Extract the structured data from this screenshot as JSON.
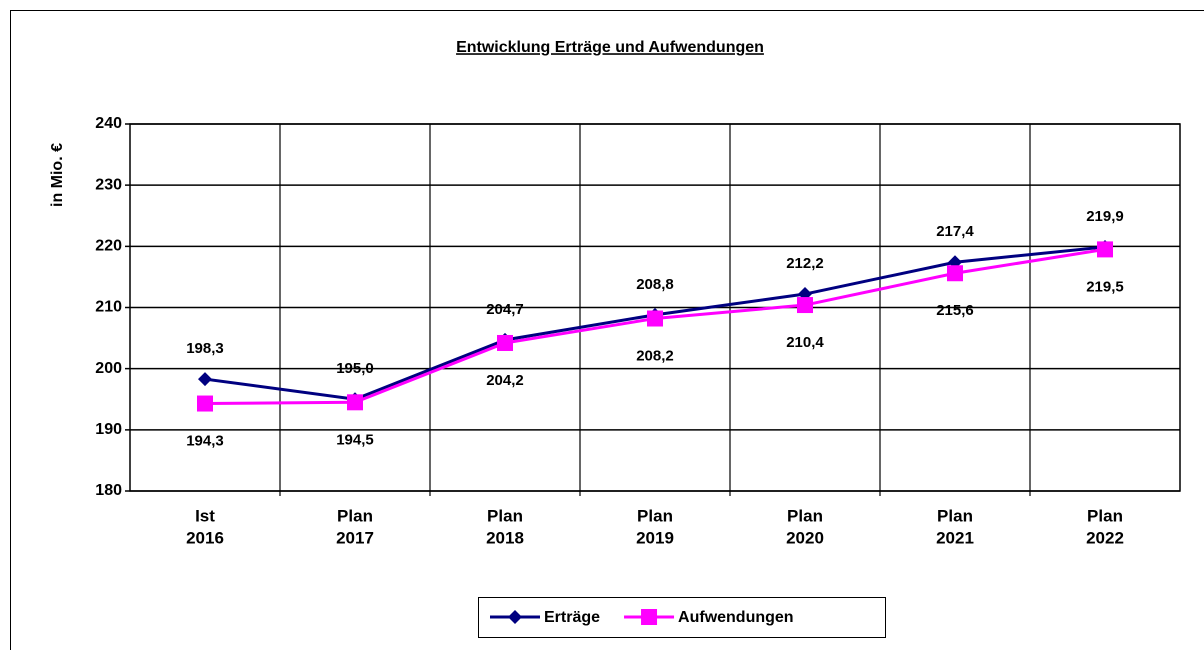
{
  "chart_data": {
    "type": "line",
    "title": "Entwicklung Erträge und Aufwendungen",
    "y_label": "in Mio. €",
    "categories": [
      [
        "Ist",
        "2016"
      ],
      [
        "Plan",
        "2017"
      ],
      [
        "Plan",
        "2018"
      ],
      [
        "Plan",
        "2019"
      ],
      [
        "Plan",
        "2020"
      ],
      [
        "Plan",
        "2021"
      ],
      [
        "Plan",
        "2022"
      ]
    ],
    "series": [
      {
        "name": "Erträge",
        "color": "#000080",
        "marker": "diamond",
        "values": [
          198.3,
          195.0,
          204.7,
          208.8,
          212.2,
          217.4,
          219.9
        ],
        "value_labels": [
          "198,3",
          "195,0",
          "204,7",
          "208,8",
          "212,2",
          "217,4",
          "219,9"
        ]
      },
      {
        "name": "Aufwendungen",
        "color": "#ff00ff",
        "marker": "square",
        "values": [
          194.3,
          194.5,
          204.2,
          208.2,
          210.4,
          215.6,
          219.5
        ],
        "value_labels": [
          "194,3",
          "194,5",
          "204,2",
          "208,2",
          "210,4",
          "215,6",
          "219,5"
        ]
      }
    ],
    "ylim": [
      180,
      240
    ],
    "yticks": [
      180,
      190,
      200,
      210,
      220,
      230,
      240
    ],
    "grid": true,
    "legend": "bottom"
  }
}
